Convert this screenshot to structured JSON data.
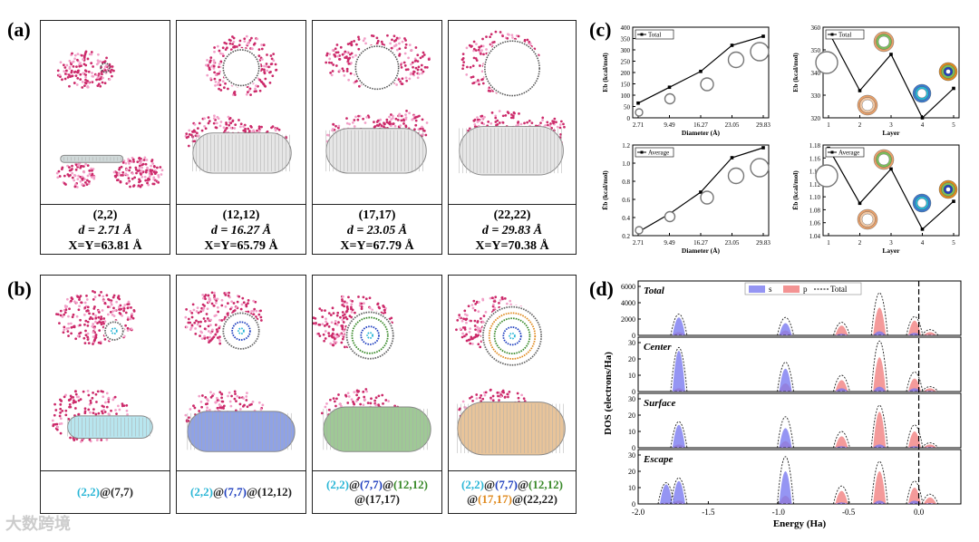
{
  "labels": {
    "a": "(a)",
    "b": "(b)",
    "c": "(c)",
    "d": "(d)"
  },
  "panel_a": [
    {
      "name": "(2,2)",
      "d": "d = 2.71 Å",
      "xy": "X=Y=63.81 Å"
    },
    {
      "name": "(12,12)",
      "d": "d = 16.27 Å",
      "xy": "X=Y=65.79 Å"
    },
    {
      "name": "(17,17)",
      "d": "d = 23.05 Å",
      "xy": "X=Y=67.79 Å"
    },
    {
      "name": "(22,22)",
      "d": "d = 29.83 Å",
      "xy": "X=Y=70.38 Å"
    }
  ],
  "panel_b": [
    {
      "parts": [
        {
          "t": "(2,2)",
          "c": "#29b6d6"
        },
        {
          "t": "@(7,7)",
          "c": "#222"
        }
      ]
    },
    {
      "parts": [
        {
          "t": "(2,2)",
          "c": "#29b6d6"
        },
        {
          "t": "@",
          "c": "#222"
        },
        {
          "t": "(7,7)",
          "c": "#1f3fbf"
        },
        {
          "t": "@(12,12)",
          "c": "#222"
        }
      ]
    },
    {
      "parts": [
        {
          "t": "(2,2)",
          "c": "#29b6d6"
        },
        {
          "t": "@",
          "c": "#222"
        },
        {
          "t": "(7,7)",
          "c": "#1f3fbf"
        },
        {
          "t": "@",
          "c": "#222"
        },
        {
          "t": "(12,12)",
          "c": "#3a8a2a"
        }
      ],
      "parts2": [
        {
          "t": "@(17,17)",
          "c": "#222"
        }
      ]
    },
    {
      "parts": [
        {
          "t": "(2,2)",
          "c": "#29b6d6"
        },
        {
          "t": "@",
          "c": "#222"
        },
        {
          "t": "(7,7)",
          "c": "#1f3fbf"
        },
        {
          "t": "@",
          "c": "#222"
        },
        {
          "t": "(12,12)",
          "c": "#3a8a2a"
        }
      ],
      "parts2": [
        {
          "t": "@",
          "c": "#222"
        },
        {
          "t": "(17,17)",
          "c": "#e08a1e"
        },
        {
          "t": "@(22,22)",
          "c": "#222"
        }
      ]
    }
  ],
  "watermark": "大数跨境",
  "chart_data": [
    {
      "id": "c1",
      "type": "line",
      "title": "",
      "xlabel": "Diameter (Å)",
      "ylabel": "Eb (kcal/mol)",
      "x": [
        2.71,
        9.49,
        16.27,
        23.05,
        29.83
      ],
      "x_ticks": [
        "2.71",
        "9.49",
        "16.27",
        "23.05",
        "29.83"
      ],
      "values": [
        65,
        135,
        205,
        320,
        360
      ],
      "ylim": [
        0,
        400
      ],
      "y_ticks": [
        0,
        50,
        100,
        150,
        200,
        250,
        300,
        350,
        400
      ],
      "legend": "Total"
    },
    {
      "id": "c2",
      "type": "line",
      "title": "",
      "xlabel": "Layer",
      "ylabel": "Eb (kcal/mol)",
      "x": [
        1,
        2,
        3,
        4,
        5
      ],
      "x_ticks": [
        "1",
        "2",
        "3",
        "4",
        "5"
      ],
      "values": [
        358,
        332,
        348,
        320,
        333
      ],
      "ylim": [
        320,
        360
      ],
      "y_ticks": [
        320,
        330,
        340,
        350,
        360
      ],
      "legend": "Total"
    },
    {
      "id": "c3",
      "type": "line",
      "title": "",
      "xlabel": "Diameter (Å)",
      "ylabel": "Ēb (kcal/mol)",
      "x": [
        2.71,
        9.49,
        16.27,
        23.05,
        29.83
      ],
      "x_ticks": [
        "2.71",
        "9.49",
        "16.27",
        "23.05",
        "29.83"
      ],
      "values": [
        0.24,
        0.44,
        0.68,
        1.06,
        1.17
      ],
      "ylim": [
        0.2,
        1.2
      ],
      "y_ticks": [
        0.2,
        0.4,
        0.6,
        0.8,
        1.0,
        1.2
      ],
      "legend": "Average"
    },
    {
      "id": "c4",
      "type": "line",
      "title": "",
      "xlabel": "Layer",
      "ylabel": "Ēb (kcal/mol)",
      "x": [
        1,
        2,
        3,
        4,
        5
      ],
      "x_ticks": [
        "1",
        "2",
        "3",
        "4",
        "5"
      ],
      "values": [
        1.175,
        1.09,
        1.143,
        1.05,
        1.093
      ],
      "ylim": [
        1.04,
        1.18
      ],
      "y_ticks": [
        1.04,
        1.06,
        1.08,
        1.1,
        1.12,
        1.14,
        1.16,
        1.18
      ],
      "legend": "Average"
    },
    {
      "id": "d",
      "type": "area",
      "xlabel": "Energy (Ha)",
      "ylabel": "DOS (electrons/Ha)",
      "xlim": [
        -2.0,
        0.3
      ],
      "x_ticks": [
        "-2.0",
        "-1.5",
        "-1.0",
        "-0.5",
        "0.0"
      ],
      "legend": [
        "s",
        "p",
        "Total"
      ],
      "series_colors": {
        "s": "#7b7bf0",
        "p": "#f07878",
        "Total": "#222"
      },
      "subplots": [
        {
          "name": "Total",
          "y_ticks": [
            0,
            2000,
            4000,
            6000
          ],
          "ymax": 6000,
          "peaks": [
            {
              "x": -1.71,
              "s": 2200,
              "p": 400,
              "tot": 2600
            },
            {
              "x": -0.95,
              "s": 1500,
              "p": 600,
              "tot": 2200
            },
            {
              "x": -0.55,
              "s": 200,
              "p": 1200,
              "tot": 1600
            },
            {
              "x": -0.28,
              "s": 500,
              "p": 3400,
              "tot": 5200
            },
            {
              "x": -0.03,
              "s": 300,
              "p": 1800,
              "tot": 2300
            },
            {
              "x": 0.08,
              "s": 50,
              "p": 400,
              "tot": 700
            }
          ]
        },
        {
          "name": "Center",
          "y_ticks": [
            0,
            10,
            20,
            30
          ],
          "ymax": 30,
          "peaks": [
            {
              "x": -1.71,
              "s": 25,
              "p": 2,
              "tot": 27
            },
            {
              "x": -0.95,
              "s": 14,
              "p": 5,
              "tot": 18
            },
            {
              "x": -0.55,
              "s": 2,
              "p": 7,
              "tot": 10
            },
            {
              "x": -0.28,
              "s": 3,
              "p": 21,
              "tot": 31
            },
            {
              "x": -0.03,
              "s": 2,
              "p": 8,
              "tot": 12
            },
            {
              "x": 0.08,
              "s": 0.5,
              "p": 2,
              "tot": 3
            }
          ]
        },
        {
          "name": "Surface",
          "y_ticks": [
            0,
            10,
            20,
            30
          ],
          "ymax": 30,
          "peaks": [
            {
              "x": -1.71,
              "s": 14,
              "p": 2,
              "tot": 16
            },
            {
              "x": -0.95,
              "s": 12,
              "p": 4,
              "tot": 19
            },
            {
              "x": -0.55,
              "s": 1,
              "p": 7,
              "tot": 10
            },
            {
              "x": -0.28,
              "s": 2,
              "p": 22,
              "tot": 26
            },
            {
              "x": -0.03,
              "s": 1,
              "p": 10,
              "tot": 14
            },
            {
              "x": 0.08,
              "s": 0.5,
              "p": 2,
              "tot": 3
            }
          ]
        },
        {
          "name": "Escape",
          "y_ticks": [
            0,
            10,
            20,
            30
          ],
          "ymax": 30,
          "peaks": [
            {
              "x": -1.8,
              "s": 12,
              "p": 1,
              "tot": 13
            },
            {
              "x": -1.71,
              "s": 14,
              "p": 2,
              "tot": 16
            },
            {
              "x": -0.95,
              "s": 20,
              "p": 5,
              "tot": 29
            },
            {
              "x": -0.55,
              "s": 1,
              "p": 8,
              "tot": 11
            },
            {
              "x": -0.28,
              "s": 2,
              "p": 20,
              "tot": 26
            },
            {
              "x": -0.03,
              "s": 2,
              "p": 10,
              "tot": 14
            },
            {
              "x": 0.08,
              "s": 0.5,
              "p": 4,
              "tot": 6
            }
          ]
        }
      ]
    }
  ]
}
